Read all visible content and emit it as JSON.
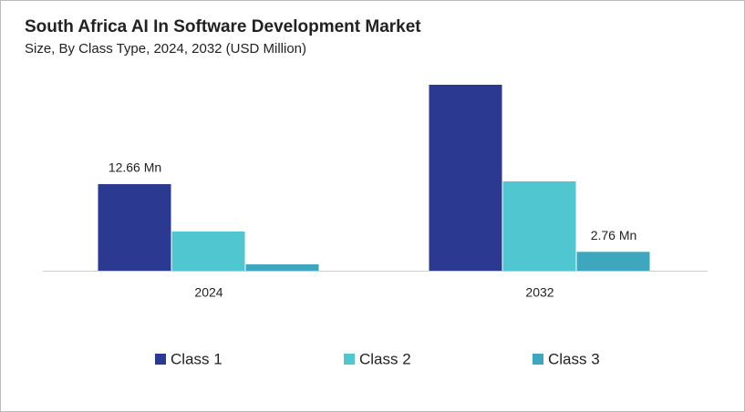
{
  "chart_data": {
    "type": "bar",
    "title": "South Africa AI In Software Development Market",
    "subtitle": "Size, By Class Type, 2024, 2032 (USD Million)",
    "categories": [
      "2024",
      "2032"
    ],
    "series": [
      {
        "name": "Class 1",
        "color": "#2b3990",
        "values": [
          12.66,
          27.19
        ],
        "value_labels": [
          "12.66 Mn",
          null
        ]
      },
      {
        "name": "Class 2",
        "color": "#4fc6d0",
        "values": [
          5.73,
          13.06
        ]
      },
      {
        "name": "Class 3",
        "color": "#3da7c0",
        "values": [
          0.93,
          2.76
        ],
        "value_labels": [
          null,
          "2.76 Mn"
        ]
      }
    ]
  }
}
